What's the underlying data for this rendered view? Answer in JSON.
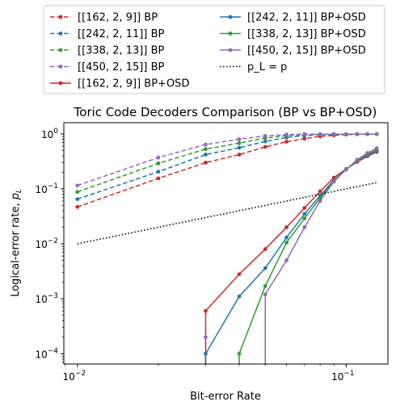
{
  "chart_data": {
    "type": "line",
    "title": "Toric Code Decoders Comparison (BP vs BP+OSD)",
    "xlabel": "Bit-error Rate",
    "ylabel_main": "Logical-error rate, ",
    "ylabel_sym": "p",
    "ylabel_sub": "L",
    "x_scale": "log",
    "y_scale": "log",
    "xlim": [
      0.0089,
      0.143
    ],
    "ylim": [
      6.5e-05,
      1.6
    ],
    "xticks": [
      {
        "value": 0.01,
        "base": "10",
        "exp": "−2"
      },
      {
        "value": 0.1,
        "base": "10",
        "exp": "−1"
      }
    ],
    "yticks": [
      {
        "value": 1,
        "base": "10",
        "exp": "0"
      },
      {
        "value": 0.1,
        "base": "10",
        "exp": "−1"
      },
      {
        "value": 0.01,
        "base": "10",
        "exp": "−2"
      },
      {
        "value": 0.001,
        "base": "10",
        "exp": "−3"
      },
      {
        "value": 0.0001,
        "base": "10",
        "exp": "−4"
      }
    ],
    "legend_position": "above",
    "grid": false,
    "series": [
      {
        "name": "[[162, 2, 9]] BP",
        "color": "#d62728",
        "style": "dashed",
        "x": [
          0.01,
          0.02,
          0.03,
          0.04,
          0.05,
          0.06,
          0.07,
          0.08,
          0.09,
          0.1,
          0.11,
          0.12,
          0.13
        ],
        "y": [
          0.047,
          0.155,
          0.3,
          0.42,
          0.58,
          0.72,
          0.82,
          0.9,
          0.94,
          0.97,
          0.98,
          0.99,
          0.99
        ]
      },
      {
        "name": "[[242, 2, 11]] BP",
        "color": "#1f77b4",
        "style": "dashed",
        "x": [
          0.01,
          0.02,
          0.03,
          0.04,
          0.05,
          0.06,
          0.07,
          0.08,
          0.09,
          0.1,
          0.11,
          0.12,
          0.13
        ],
        "y": [
          0.065,
          0.205,
          0.42,
          0.56,
          0.73,
          0.86,
          0.93,
          0.97,
          0.98,
          0.99,
          0.99,
          0.99,
          0.99
        ]
      },
      {
        "name": "[[338, 2, 13]] BP",
        "color": "#2ca02c",
        "style": "dashed",
        "x": [
          0.01,
          0.02,
          0.03,
          0.04,
          0.05,
          0.06,
          0.07,
          0.08,
          0.09,
          0.1,
          0.11,
          0.12,
          0.13
        ],
        "y": [
          0.088,
          0.29,
          0.53,
          0.68,
          0.84,
          0.93,
          0.97,
          0.98,
          0.99,
          0.99,
          0.99,
          0.99,
          0.99
        ]
      },
      {
        "name": "[[450, 2, 15]] BP",
        "color": "#9467bd",
        "style": "dashed",
        "x": [
          0.01,
          0.02,
          0.03,
          0.04,
          0.05,
          0.06,
          0.07,
          0.08,
          0.09,
          0.1,
          0.11,
          0.12,
          0.13
        ],
        "y": [
          0.115,
          0.37,
          0.64,
          0.8,
          0.92,
          0.97,
          0.99,
          0.99,
          0.99,
          0.99,
          0.99,
          0.99,
          0.99
        ]
      },
      {
        "name": "[[162, 2, 9]] BP+OSD",
        "color": "#d62728",
        "style": "solid",
        "x": [
          0.03,
          0.03,
          0.04,
          0.05,
          0.06,
          0.07,
          0.08,
          0.09,
          0.1,
          0.11,
          0.12,
          0.13
        ],
        "y": [
          2e-05,
          0.0006,
          0.0028,
          0.008,
          0.02,
          0.045,
          0.09,
          0.16,
          0.23,
          0.31,
          0.39,
          0.47
        ]
      },
      {
        "name": "[[242, 2, 11]] BP+OSD",
        "color": "#1f77b4",
        "style": "solid",
        "x": [
          0.03,
          0.03,
          0.04,
          0.05,
          0.06,
          0.07,
          0.08,
          0.09,
          0.1,
          0.11,
          0.12,
          0.13
        ],
        "y": [
          2e-05,
          0.0001,
          0.0011,
          0.0036,
          0.013,
          0.035,
          0.075,
          0.145,
          0.225,
          0.32,
          0.41,
          0.49
        ]
      },
      {
        "name": "[[338, 2, 13]] BP+OSD",
        "color": "#2ca02c",
        "style": "solid",
        "x": [
          0.04,
          0.04,
          0.05,
          0.06,
          0.07,
          0.08,
          0.09,
          0.1,
          0.11,
          0.12,
          0.13
        ],
        "y": [
          2e-05,
          0.0001,
          0.0017,
          0.0105,
          0.029,
          0.068,
          0.14,
          0.225,
          0.33,
          0.43,
          0.51
        ]
      },
      {
        "name": "[[450, 2, 15]] BP+OSD",
        "color": "#9467bd",
        "style": "solid",
        "x": [
          0.05,
          0.05,
          0.06,
          0.07,
          0.08,
          0.09,
          0.1,
          0.11,
          0.12,
          0.13
        ],
        "y": [
          2e-05,
          0.0012,
          0.005,
          0.02,
          0.06,
          0.135,
          0.225,
          0.34,
          0.45,
          0.55
        ]
      },
      {
        "name": "p_L = p",
        "color": "#000000",
        "style": "dotted",
        "x": [
          0.01,
          0.13
        ],
        "y": [
          0.01,
          0.13
        ]
      }
    ],
    "extra_markers": [
      {
        "series": "[[450, 2, 15]] BP+OSD",
        "x": 0.03,
        "y": 0.0002
      }
    ]
  }
}
